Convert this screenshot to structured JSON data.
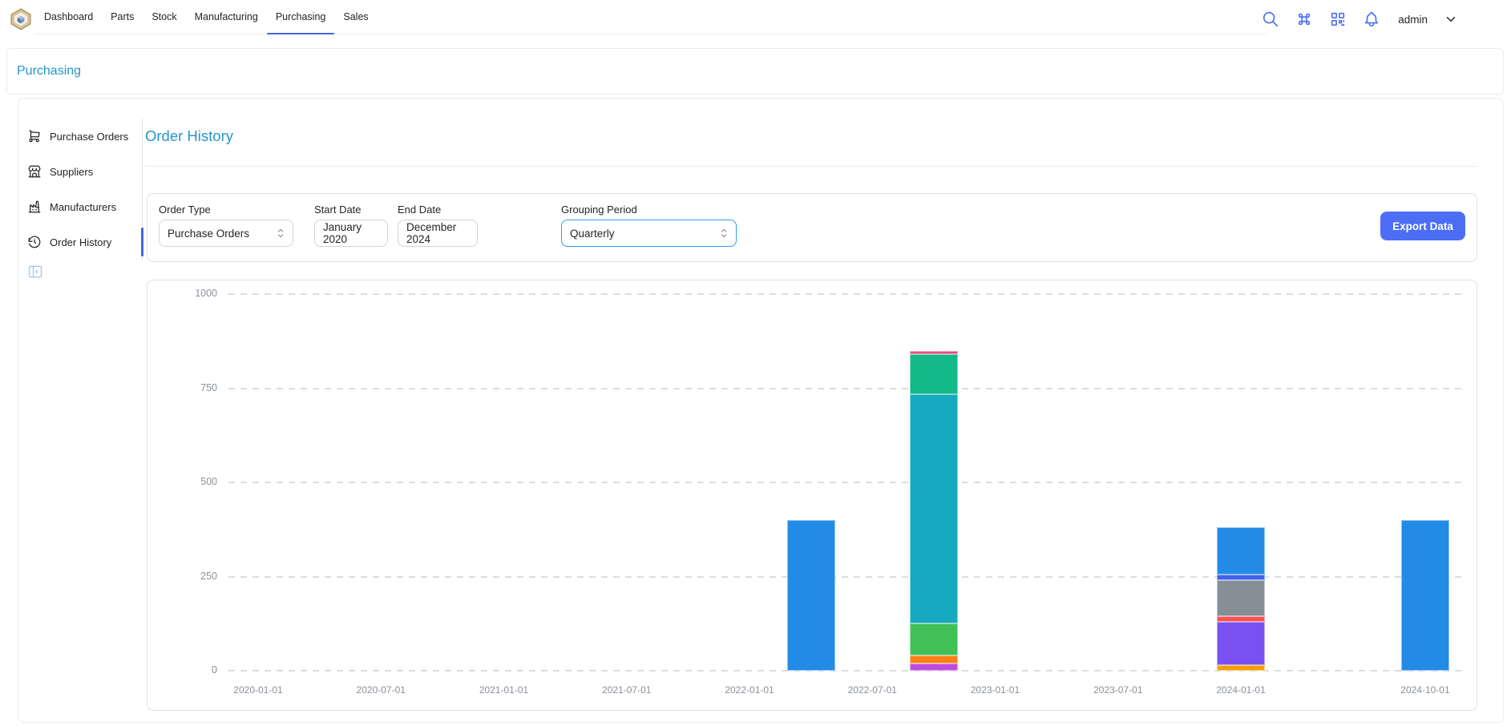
{
  "header": {
    "nav": [
      "Dashboard",
      "Parts",
      "Stock",
      "Manufacturing",
      "Purchasing",
      "Sales"
    ],
    "active_tab": "Purchasing",
    "icons": [
      "search-icon",
      "command-icon",
      "qrcode-scan-icon",
      "notification-bell-icon"
    ],
    "username": "admin",
    "logo": "inventree-logo"
  },
  "breadcrumb": {
    "title": "Purchasing"
  },
  "sidebar": {
    "items": [
      {
        "label": "Purchase Orders",
        "icon": "shopping-cart-icon",
        "active": false
      },
      {
        "label": "Suppliers",
        "icon": "building-store-icon",
        "active": false
      },
      {
        "label": "Manufacturers",
        "icon": "building-factory-icon",
        "active": false
      },
      {
        "label": "Order History",
        "icon": "history-icon",
        "active": true
      }
    ],
    "collapse_icon": "sidebar-collapse-icon"
  },
  "page": {
    "title": "Order History"
  },
  "filters": {
    "order_type": {
      "label": "Order Type",
      "value": "Purchase Orders"
    },
    "start_date": {
      "label": "Start Date",
      "value": "January 2020"
    },
    "end_date": {
      "label": "End Date",
      "value": "December 2024"
    },
    "grouping_period": {
      "label": "Grouping Period",
      "value": "Quarterly"
    },
    "export_label": "Export Data"
  },
  "colors": {
    "accent_indigo": "#4c6ef5",
    "tab_indicator": "#4263eb",
    "link_blue": "#2496cb",
    "bar_blue": "#228be6"
  },
  "chart_data": {
    "type": "bar",
    "stacked": true,
    "title": "",
    "xlabel": "",
    "ylabel": "",
    "legend": "none",
    "grid": "dashed-horizontal",
    "ylim": [
      0,
      1050
    ],
    "yticks": [
      0,
      250,
      500,
      750,
      1000
    ],
    "categories": [
      "2020-01-01",
      "2020-04-01",
      "2020-07-01",
      "2020-10-01",
      "2021-01-01",
      "2021-04-01",
      "2021-07-01",
      "2021-10-01",
      "2022-01-01",
      "2022-04-01",
      "2022-07-01",
      "2022-10-01",
      "2023-01-01",
      "2023-04-01",
      "2023-07-01",
      "2023-10-01",
      "2024-01-01",
      "2024-04-01",
      "2024-07-01",
      "2024-10-01"
    ],
    "x_ticks": [
      {
        "index": 0,
        "label": "2020-01-01"
      },
      {
        "index": 2,
        "label": "2020-07-01"
      },
      {
        "index": 4,
        "label": "2021-01-01"
      },
      {
        "index": 6,
        "label": "2021-07-01"
      },
      {
        "index": 8,
        "label": "2022-01-01"
      },
      {
        "index": 10,
        "label": "2022-07-01"
      },
      {
        "index": 12,
        "label": "2023-01-01"
      },
      {
        "index": 14,
        "label": "2023-07-01"
      },
      {
        "index": 16,
        "label": "2024-01-01"
      },
      {
        "index": 19,
        "label": "2024-10-01"
      }
    ],
    "bars": [
      {
        "category": "2022-04-01",
        "index": 9,
        "total": 400,
        "segments": [
          {
            "color": "#228be6",
            "value": 400
          }
        ]
      },
      {
        "category": "2022-10-01",
        "index": 11,
        "total": 850,
        "segments": [
          {
            "color": "#be4bdb",
            "value": 20
          },
          {
            "color": "#fd7e14",
            "value": 20
          },
          {
            "color": "#40c057",
            "value": 85
          },
          {
            "color": "#15aabf",
            "value": 610
          },
          {
            "color": "#12b886",
            "value": 105
          },
          {
            "color": "#e64980",
            "value": 10
          }
        ]
      },
      {
        "category": "2024-01-01",
        "index": 16,
        "total": 380,
        "segments": [
          {
            "color": "#f59f00",
            "value": 15
          },
          {
            "color": "#7950f2",
            "value": 115
          },
          {
            "color": "#fa5252",
            "value": 15
          },
          {
            "color": "#868e96",
            "value": 95
          },
          {
            "color": "#4263eb",
            "value": 15
          },
          {
            "color": "#228be6",
            "value": 125
          }
        ]
      },
      {
        "category": "2024-10-01",
        "index": 19,
        "total": 400,
        "segments": [
          {
            "color": "#228be6",
            "value": 400
          }
        ]
      }
    ]
  }
}
